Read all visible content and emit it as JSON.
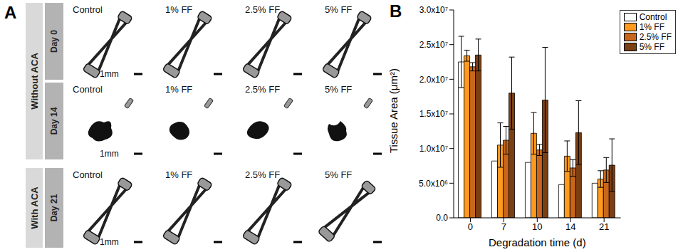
{
  "panel_a": {
    "label": "A",
    "scale_bar": "1mm",
    "groups": [
      {
        "label": "Without ACA",
        "rows": [
          {
            "label": "Day 0",
            "cells": [
              "Control",
              "1% FF",
              "2.5% FF",
              "5% FF"
            ]
          },
          {
            "label": "Day 14",
            "cells": [
              "Control",
              "1% FF",
              "2.5% FF",
              "5% FF"
            ]
          }
        ]
      },
      {
        "label": "With ACA",
        "rows": [
          {
            "label": "Day 21",
            "cells": [
              "Control",
              "1% FF",
              "2.5% FF",
              "5% FF"
            ]
          }
        ]
      }
    ]
  },
  "chart_data": {
    "panel_label": "B",
    "type": "bar",
    "x_label": "Degradation time (d)",
    "y_label": "Tissue Area (μm²)",
    "categories": [
      0,
      7,
      10,
      14,
      21
    ],
    "ylim": [
      0,
      30000000
    ],
    "yticks": [
      {
        "value": 0,
        "label": "0.0"
      },
      {
        "value": 5000000,
        "label": "5.0x10⁶"
      },
      {
        "value": 10000000,
        "label": "1.0x10⁷"
      },
      {
        "value": 15000000,
        "label": "1.5x10⁷"
      },
      {
        "value": 20000000,
        "label": "2.0x10⁷"
      },
      {
        "value": 25000000,
        "label": "2.5x10⁷"
      },
      {
        "value": 30000000,
        "label": "3.0x10⁷"
      }
    ],
    "legend": "top-right",
    "grid": false,
    "series": [
      {
        "name": "Control",
        "color": "#ffffff",
        "values": [
          22500000,
          8200000,
          8000000,
          4800000,
          5000000
        ],
        "errors": [
          3700000,
          null,
          null,
          null,
          null
        ]
      },
      {
        "name": "1% FF",
        "color": "#ff9a1e",
        "values": [
          23400000,
          10500000,
          12200000,
          8900000,
          5600000
        ],
        "errors": [
          800000,
          3200000,
          3000000,
          2200000,
          1200000
        ]
      },
      {
        "name": "2.5% FF",
        "color": "#c8671c",
        "values": [
          21800000,
          11200000,
          9800000,
          7200000,
          6900000
        ],
        "errors": [
          600000,
          2000000,
          800000,
          1200000,
          1800000
        ]
      },
      {
        "name": "5% FF",
        "color": "#7b3f14",
        "values": [
          23500000,
          18000000,
          17000000,
          12300000,
          7600000
        ],
        "errors": [
          2300000,
          5200000,
          7600000,
          4600000,
          3800000
        ]
      }
    ]
  }
}
